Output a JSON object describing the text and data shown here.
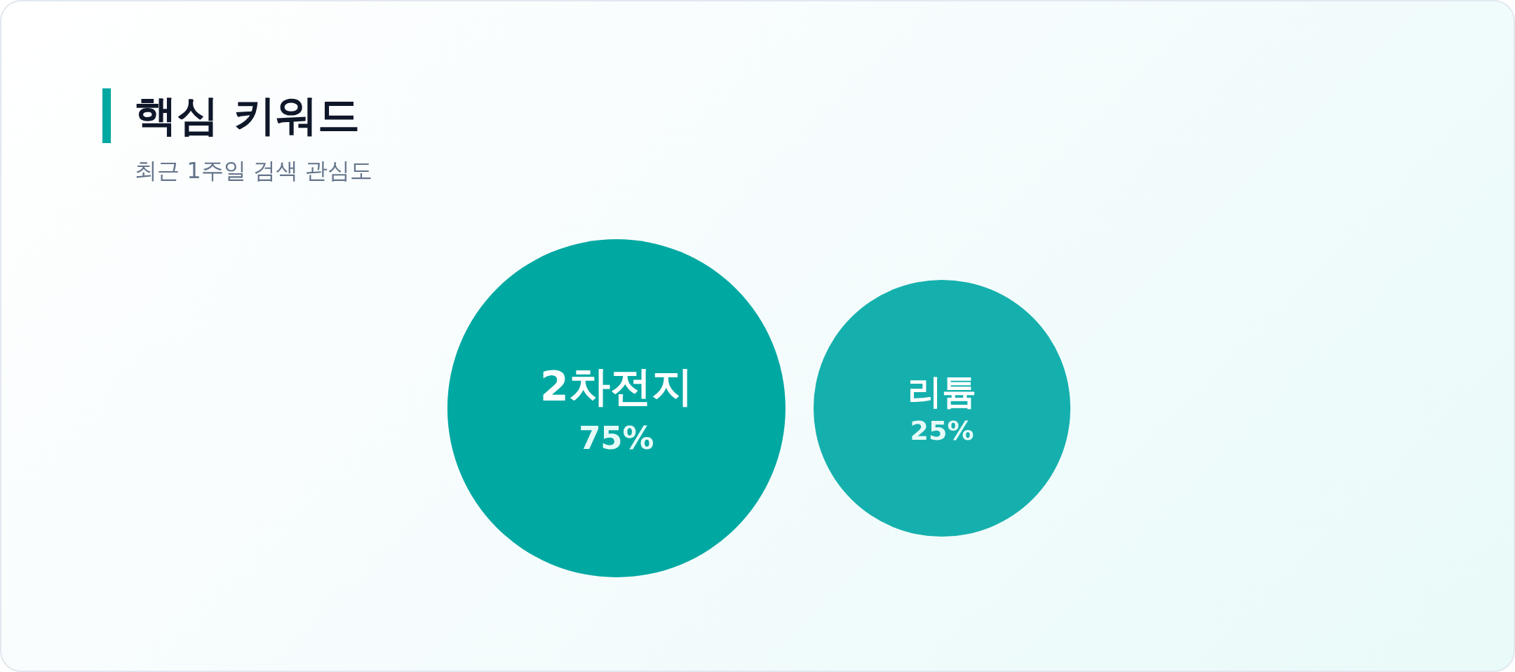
{
  "chart_data": {
    "type": "other",
    "title": "핵심 키워드",
    "subtitle": "최근 1주일 검색 관심도",
    "categories": [
      "2차전지",
      "리튬"
    ],
    "values": [
      75,
      25
    ],
    "value_labels": [
      "75%",
      "25%"
    ],
    "colors": [
      "#00a8a2",
      "#15b0ad"
    ]
  }
}
